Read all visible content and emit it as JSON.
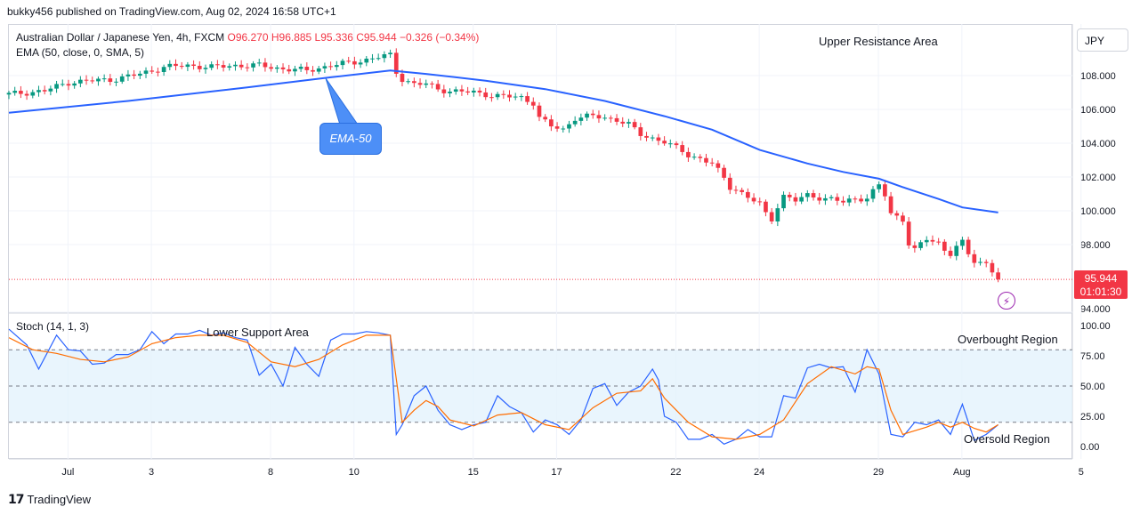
{
  "header": "bukky456 published on TradingView.com, Aug 02, 2024 16:58 UTC+1",
  "legend": {
    "symbol": "Australian Dollar / Japanese Yen, 4h, FXCM",
    "ohlc": "O96.270 H96.885 L95.336 C95.944 −0.326 (−0.34%)",
    "ema": "EMA (50, close, 0, SMA, 5)",
    "stoch": "Stoch (14, 1, 3)"
  },
  "currency_button": "JPY",
  "price_badge": {
    "price": "95.944",
    "countdown": "01:01:30"
  },
  "annotations": {
    "ema_callout": "EMA-50",
    "upper_resistance": "Upper Resistance Area",
    "lower_support": "Lower Support Area",
    "overbought": "Overbought Region",
    "oversold": "Oversold Region"
  },
  "footer": "TradingView",
  "colors": {
    "up": "#089981",
    "down": "#f23645",
    "ema": "#2962ff",
    "k": "#2962ff",
    "d": "#ff6d00",
    "band": "#e3f2fd"
  },
  "chart_data": [
    {
      "type": "candlestick",
      "title": "Australian Dollar / Japanese Yen, 4h, FXCM",
      "ylabel": "JPY",
      "ylim": [
        94,
        110.5
      ],
      "y_ticks": [
        "108.000",
        "106.000",
        "104.000",
        "102.000",
        "100.000",
        "98.000",
        "94.000"
      ],
      "x_ticks": [
        "Jul",
        "3",
        "8",
        "10",
        "15",
        "17",
        "22",
        "24",
        "29",
        "Aug",
        "5"
      ],
      "last_price": 95.944,
      "close_path": [
        [
          0,
          106.9
        ],
        [
          6,
          107.1
        ],
        [
          10,
          107.6
        ],
        [
          14,
          107.7
        ],
        [
          18,
          107.8
        ],
        [
          22,
          108.1
        ],
        [
          26,
          108.5
        ],
        [
          30,
          108.6
        ],
        [
          34,
          108.5
        ],
        [
          38,
          108.6
        ],
        [
          42,
          108.6
        ],
        [
          46,
          108.4
        ],
        [
          50,
          108.3
        ],
        [
          54,
          108.6
        ],
        [
          58,
          108.8
        ],
        [
          62,
          109.1
        ],
        [
          64,
          109.2
        ],
        [
          65,
          108.2
        ],
        [
          66,
          107.8
        ],
        [
          68,
          107.5
        ],
        [
          70,
          107.5
        ],
        [
          72,
          107.2
        ],
        [
          74,
          107.1
        ],
        [
          78,
          107.0
        ],
        [
          82,
          106.8
        ],
        [
          86,
          106.7
        ],
        [
          88,
          106.4
        ],
        [
          89,
          105.5
        ],
        [
          91,
          105.0
        ],
        [
          93,
          104.8
        ],
        [
          95,
          105.5
        ],
        [
          98,
          105.6
        ],
        [
          102,
          105.4
        ],
        [
          104,
          105.1
        ],
        [
          106,
          104.5
        ],
        [
          108,
          104.3
        ],
        [
          110,
          104.1
        ],
        [
          112,
          103.7
        ],
        [
          114,
          103.3
        ],
        [
          116,
          103.1
        ],
        [
          118,
          102.8
        ],
        [
          120,
          101.9
        ],
        [
          121,
          101.4
        ],
        [
          122,
          101.3
        ],
        [
          124,
          100.8
        ],
        [
          126,
          100.4
        ],
        [
          127,
          99.8
        ],
        [
          128,
          99.5
        ],
        [
          129,
          100.3
        ],
        [
          130,
          100.9
        ],
        [
          132,
          100.6
        ],
        [
          134,
          100.9
        ],
        [
          136,
          100.8
        ],
        [
          138,
          100.7
        ],
        [
          140,
          100.5
        ],
        [
          142,
          100.7
        ],
        [
          144,
          100.8
        ],
        [
          146,
          101.5
        ],
        [
          147,
          100.9
        ],
        [
          148,
          99.8
        ],
        [
          150,
          99.5
        ],
        [
          151,
          98.1
        ],
        [
          152,
          97.7
        ],
        [
          154,
          98.3
        ],
        [
          156,
          98.1
        ],
        [
          157,
          97.7
        ],
        [
          158,
          97.5
        ],
        [
          159,
          97.9
        ],
        [
          160,
          98.1
        ],
        [
          161,
          97.4
        ],
        [
          162,
          97.0
        ],
        [
          164,
          96.9
        ],
        [
          165,
          96.5
        ],
        [
          166,
          95.9
        ]
      ],
      "series": [
        {
          "name": "EMA (50, close, 0, SMA, 5)",
          "values": [
            [
              0,
              105.8
            ],
            [
              20,
              106.5
            ],
            [
              40,
              107.3
            ],
            [
              54,
              107.9
            ],
            [
              64,
              108.3
            ],
            [
              70,
              108.1
            ],
            [
              80,
              107.7
            ],
            [
              90,
              107.2
            ],
            [
              100,
              106.5
            ],
            [
              110,
              105.6
            ],
            [
              118,
              104.8
            ],
            [
              126,
              103.6
            ],
            [
              134,
              102.8
            ],
            [
              140,
              102.3
            ],
            [
              146,
              101.9
            ],
            [
              150,
              101.4
            ],
            [
              156,
              100.7
            ],
            [
              160,
              100.2
            ],
            [
              166,
              99.9
            ]
          ]
        }
      ]
    },
    {
      "type": "line",
      "title": "Stoch (14, 1, 3)",
      "ylim": [
        0,
        100
      ],
      "y_ticks": [
        "100.00",
        "75.00",
        "50.00",
        "25.00",
        "0.00"
      ],
      "bands": [
        80,
        50,
        20
      ],
      "series": [
        {
          "name": "%K",
          "values": [
            [
              0,
              97
            ],
            [
              3,
              84
            ],
            [
              5,
              64
            ],
            [
              8,
              92
            ],
            [
              10,
              80
            ],
            [
              12,
              79
            ],
            [
              14,
              68
            ],
            [
              16,
              69
            ],
            [
              18,
              76
            ],
            [
              20,
              76
            ],
            [
              22,
              80
            ],
            [
              24,
              95
            ],
            [
              26,
              85
            ],
            [
              28,
              93
            ],
            [
              30,
              93
            ],
            [
              32,
              96
            ],
            [
              34,
              92
            ],
            [
              36,
              94
            ],
            [
              38,
              90
            ],
            [
              40,
              88
            ],
            [
              42,
              59
            ],
            [
              44,
              68
            ],
            [
              46,
              50
            ],
            [
              48,
              82
            ],
            [
              50,
              68
            ],
            [
              52,
              58
            ],
            [
              54,
              88
            ],
            [
              56,
              93
            ],
            [
              58,
              93
            ],
            [
              60,
              95
            ],
            [
              62,
              94
            ],
            [
              64,
              92
            ],
            [
              65,
              10
            ],
            [
              66,
              18
            ],
            [
              68,
              42
            ],
            [
              70,
              50
            ],
            [
              72,
              30
            ],
            [
              74,
              18
            ],
            [
              76,
              14
            ],
            [
              78,
              18
            ],
            [
              80,
              20
            ],
            [
              82,
              42
            ],
            [
              84,
              33
            ],
            [
              86,
              28
            ],
            [
              88,
              12
            ],
            [
              90,
              22
            ],
            [
              92,
              18
            ],
            [
              94,
              10
            ],
            [
              96,
              22
            ],
            [
              98,
              48
            ],
            [
              100,
              52
            ],
            [
              102,
              34
            ],
            [
              104,
              45
            ],
            [
              106,
              50
            ],
            [
              108,
              64
            ],
            [
              109,
              55
            ],
            [
              110,
              25
            ],
            [
              112,
              20
            ],
            [
              114,
              6
            ],
            [
              116,
              6
            ],
            [
              118,
              10
            ],
            [
              120,
              2
            ],
            [
              122,
              6
            ],
            [
              124,
              14
            ],
            [
              126,
              8
            ],
            [
              128,
              8
            ],
            [
              130,
              42
            ],
            [
              132,
              40
            ],
            [
              134,
              65
            ],
            [
              136,
              68
            ],
            [
              138,
              65
            ],
            [
              140,
              66
            ],
            [
              142,
              45
            ],
            [
              144,
              80
            ],
            [
              146,
              60
            ],
            [
              148,
              10
            ],
            [
              150,
              8
            ],
            [
              152,
              20
            ],
            [
              154,
              18
            ],
            [
              156,
              22
            ],
            [
              158,
              10
            ],
            [
              160,
              35
            ],
            [
              162,
              5
            ],
            [
              164,
              10
            ],
            [
              166,
              18
            ]
          ]
        },
        {
          "name": "%D",
          "values": [
            [
              0,
              90
            ],
            [
              4,
              80
            ],
            [
              8,
              77
            ],
            [
              12,
              72
            ],
            [
              16,
              70
            ],
            [
              20,
              74
            ],
            [
              24,
              85
            ],
            [
              28,
              90
            ],
            [
              32,
              92
            ],
            [
              36,
              92
            ],
            [
              40,
              86
            ],
            [
              44,
              70
            ],
            [
              48,
              66
            ],
            [
              52,
              72
            ],
            [
              56,
              84
            ],
            [
              60,
              92
            ],
            [
              64,
              92
            ],
            [
              66,
              20
            ],
            [
              68,
              30
            ],
            [
              70,
              38
            ],
            [
              72,
              33
            ],
            [
              74,
              22
            ],
            [
              78,
              17
            ],
            [
              82,
              26
            ],
            [
              86,
              28
            ],
            [
              90,
              18
            ],
            [
              94,
              14
            ],
            [
              98,
              32
            ],
            [
              102,
              44
            ],
            [
              106,
              46
            ],
            [
              108,
              56
            ],
            [
              110,
              40
            ],
            [
              114,
              20
            ],
            [
              118,
              8
            ],
            [
              122,
              6
            ],
            [
              126,
              10
            ],
            [
              130,
              22
            ],
            [
              134,
              52
            ],
            [
              138,
              66
            ],
            [
              142,
              60
            ],
            [
              144,
              66
            ],
            [
              146,
              64
            ],
            [
              148,
              30
            ],
            [
              150,
              10
            ],
            [
              154,
              16
            ],
            [
              156,
              20
            ],
            [
              158,
              16
            ],
            [
              160,
              20
            ],
            [
              162,
              15
            ],
            [
              164,
              12
            ],
            [
              166,
              18
            ]
          ]
        }
      ]
    }
  ]
}
